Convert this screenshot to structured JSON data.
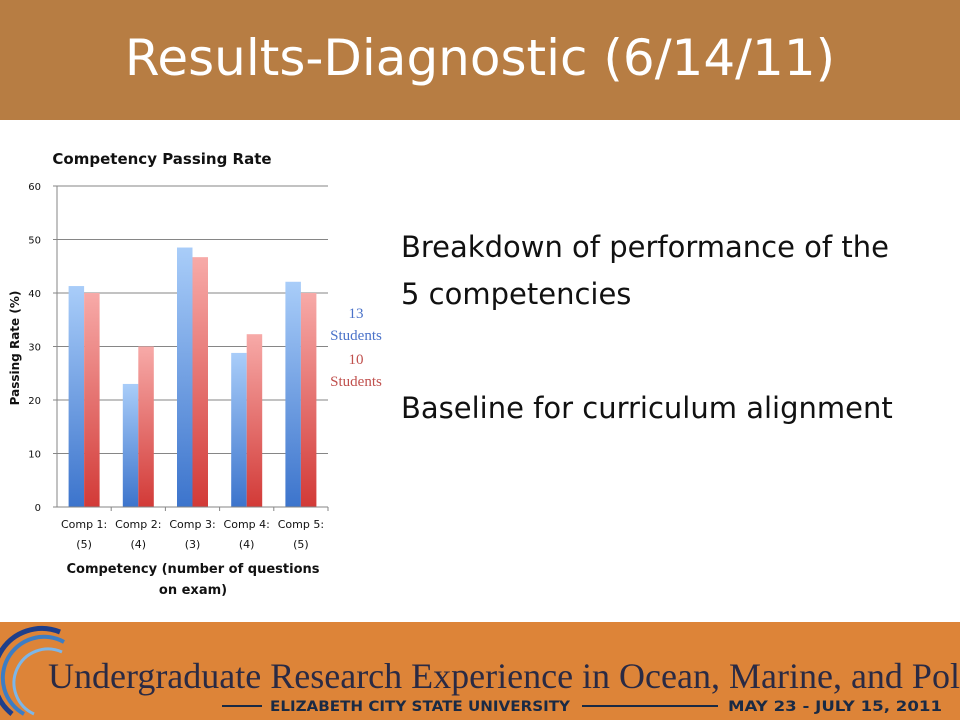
{
  "slide": {
    "title": "Results-Diagnostic (6/14/11)",
    "bullets": [
      "Breakdown of performance of the 5 competencies",
      "Baseline for curriculum alignment"
    ],
    "legend": {
      "series_a_count": "13",
      "series_b_count": "10",
      "unit": "Students"
    }
  },
  "footer": {
    "program": "Undergraduate Research Experience in Ocean, Marine, and Polar Science",
    "university": "ELIZABETH CITY STATE UNIVERSITY",
    "dates": "MAY 23 - JULY 15, 2011"
  },
  "colors": {
    "header": "#b77d43",
    "footer": "#dd8438",
    "series_a_light": "#a9cdf9",
    "series_a_dark": "#3c74cc",
    "series_b_light": "#f7aaa8",
    "series_b_dark": "#d23a37"
  },
  "chart_data": {
    "type": "bar",
    "title": "Competency Passing Rate",
    "xlabel": "Competency (number of questions on exam)",
    "ylabel": "Passing Rate (%)",
    "ylim": [
      0,
      60
    ],
    "yticks": [
      "0",
      "10",
      "20",
      "30",
      "40",
      "50",
      "60"
    ],
    "categories": [
      [
        "Comp 1:",
        "(5)"
      ],
      [
        "Comp 2:",
        "(4)"
      ],
      [
        "Comp 3:",
        "(3)"
      ],
      [
        "Comp 4:",
        "(4)"
      ],
      [
        "Comp 5:",
        "(5)"
      ]
    ],
    "series": [
      {
        "values": [
          41.3,
          23,
          48.5,
          28.8,
          42.1
        ]
      },
      {
        "values": [
          40,
          30,
          46.7,
          32.3,
          40
        ]
      }
    ],
    "grid": true,
    "legend_position": "right"
  }
}
